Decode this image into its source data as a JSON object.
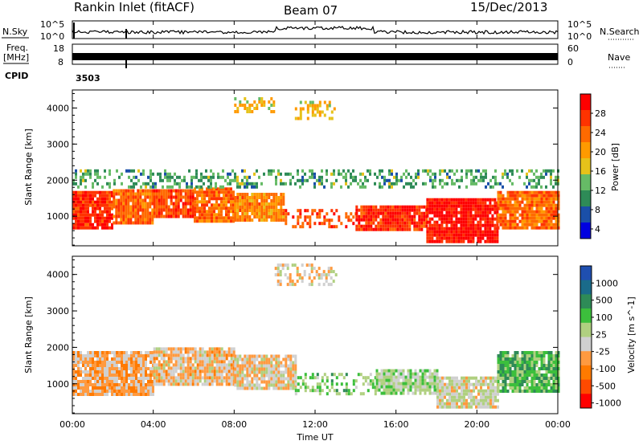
{
  "header": {
    "station": "Rankin Inlet (fitACF)",
    "beam": "Beam 07",
    "date": "15/Dec/2013"
  },
  "strip": {
    "nsky_label": "N.Sky",
    "nsearch_label": "N.Search",
    "freq_label_1": "Freq.",
    "freq_label_2": "[MHz]",
    "nave_label": "Nave",
    "cpid_label": "CPID",
    "cpid_value": "3503",
    "noise_ticks_left": [
      "10^5",
      "10^0"
    ],
    "noise_ticks_right": [
      "10^5",
      "10^0"
    ],
    "freq_ticks": [
      "18",
      "8"
    ],
    "nave_ticks": [
      "60",
      "0"
    ]
  },
  "xaxis": {
    "label": "Time UT",
    "ticks": [
      "00:00",
      "04:00",
      "08:00",
      "12:00",
      "16:00",
      "20:00",
      "00:00"
    ]
  },
  "colors": {
    "power_scale": [
      "#0000e0",
      "#1a4fa8",
      "#2e8b57",
      "#66bb66",
      "#e6c21a",
      "#ff9a00",
      "#ff6a00",
      "#ff3300",
      "#ff0000"
    ],
    "velocity_scale": [
      "#ff0000",
      "#ff4a00",
      "#ff7a00",
      "#ff9a40",
      "#d0d0d0",
      "#b0d080",
      "#3cbf3c",
      "#2e8b57",
      "#1a6b8a",
      "#1f4fb0"
    ]
  },
  "chart_data": [
    {
      "type": "heatmap",
      "name": "power-panel",
      "ylabel": "Slant Range [km]",
      "yticks": [
        "4000",
        "3000",
        "2000",
        "1000"
      ],
      "ylim": [
        180,
        4500
      ],
      "xlim": [
        0,
        24
      ],
      "colorbar": {
        "label": "Power [dB]",
        "ticks": [
          "28",
          "24",
          "20",
          "16",
          "12",
          "8",
          "4"
        ],
        "range": [
          0,
          30
        ]
      },
      "bands": [
        {
          "t_start": 0,
          "t_end": 2,
          "range_min": 700,
          "range_max": 1700,
          "value": 26
        },
        {
          "t_start": 2,
          "t_end": 4,
          "range_min": 800,
          "range_max": 1750,
          "value": 22
        },
        {
          "t_start": 4,
          "t_end": 6,
          "range_min": 1000,
          "range_max": 1750,
          "value": 24
        },
        {
          "t_start": 6,
          "t_end": 8,
          "range_min": 900,
          "range_max": 1800,
          "value": 22
        },
        {
          "t_start": 8,
          "t_end": 10.5,
          "range_min": 900,
          "range_max": 1650,
          "value": 20
        },
        {
          "t_start": 10.5,
          "t_end": 14,
          "range_min": 700,
          "range_max": 1200,
          "value": 24
        },
        {
          "t_start": 14,
          "t_end": 17.5,
          "range_min": 600,
          "range_max": 1300,
          "value": 26
        },
        {
          "t_start": 17.5,
          "t_end": 21,
          "range_min": 300,
          "range_max": 1500,
          "value": 28
        },
        {
          "t_start": 21,
          "t_end": 24,
          "range_min": 700,
          "range_max": 1700,
          "value": 22
        },
        {
          "t_start": 11,
          "t_end": 13,
          "range_min": 3700,
          "range_max": 4200,
          "value": 16
        },
        {
          "t_start": 8,
          "t_end": 10,
          "range_min": 3900,
          "range_max": 4300,
          "value": 16
        },
        {
          "t_start": 0,
          "t_end": 24,
          "range_min": 1800,
          "range_max": 2300,
          "value": 10
        }
      ]
    },
    {
      "type": "heatmap",
      "name": "velocity-panel",
      "ylabel": "Slant Range [km]",
      "yticks": [
        "4000",
        "3000",
        "2000",
        "1000"
      ],
      "ylim": [
        180,
        4500
      ],
      "xlim": [
        0,
        24
      ],
      "colorbar": {
        "label": "Velocity [m s^-1]",
        "ticks": [
          "1000",
          "500",
          "100",
          "25",
          "-25",
          "-100",
          "-500",
          "-1000"
        ],
        "range": [
          -1000,
          1000
        ]
      },
      "bands": [
        {
          "t_start": 0,
          "t_end": 4,
          "range_min": 700,
          "range_max": 1900,
          "value": -250
        },
        {
          "t_start": 4,
          "t_end": 8,
          "range_min": 1000,
          "range_max": 2000,
          "value": -200
        },
        {
          "t_start": 8,
          "t_end": 11,
          "range_min": 900,
          "range_max": 1800,
          "value": -150
        },
        {
          "t_start": 11,
          "t_end": 15,
          "range_min": 700,
          "range_max": 1300,
          "value": 200
        },
        {
          "t_start": 15,
          "t_end": 18,
          "range_min": 700,
          "range_max": 1400,
          "value": 100
        },
        {
          "t_start": 18,
          "t_end": 21,
          "range_min": 400,
          "range_max": 1200,
          "value": -50
        },
        {
          "t_start": 21,
          "t_end": 24,
          "range_min": 800,
          "range_max": 1900,
          "value": 300
        },
        {
          "t_start": 10,
          "t_end": 13,
          "range_min": 3700,
          "range_max": 4300,
          "value": -150
        }
      ]
    }
  ]
}
